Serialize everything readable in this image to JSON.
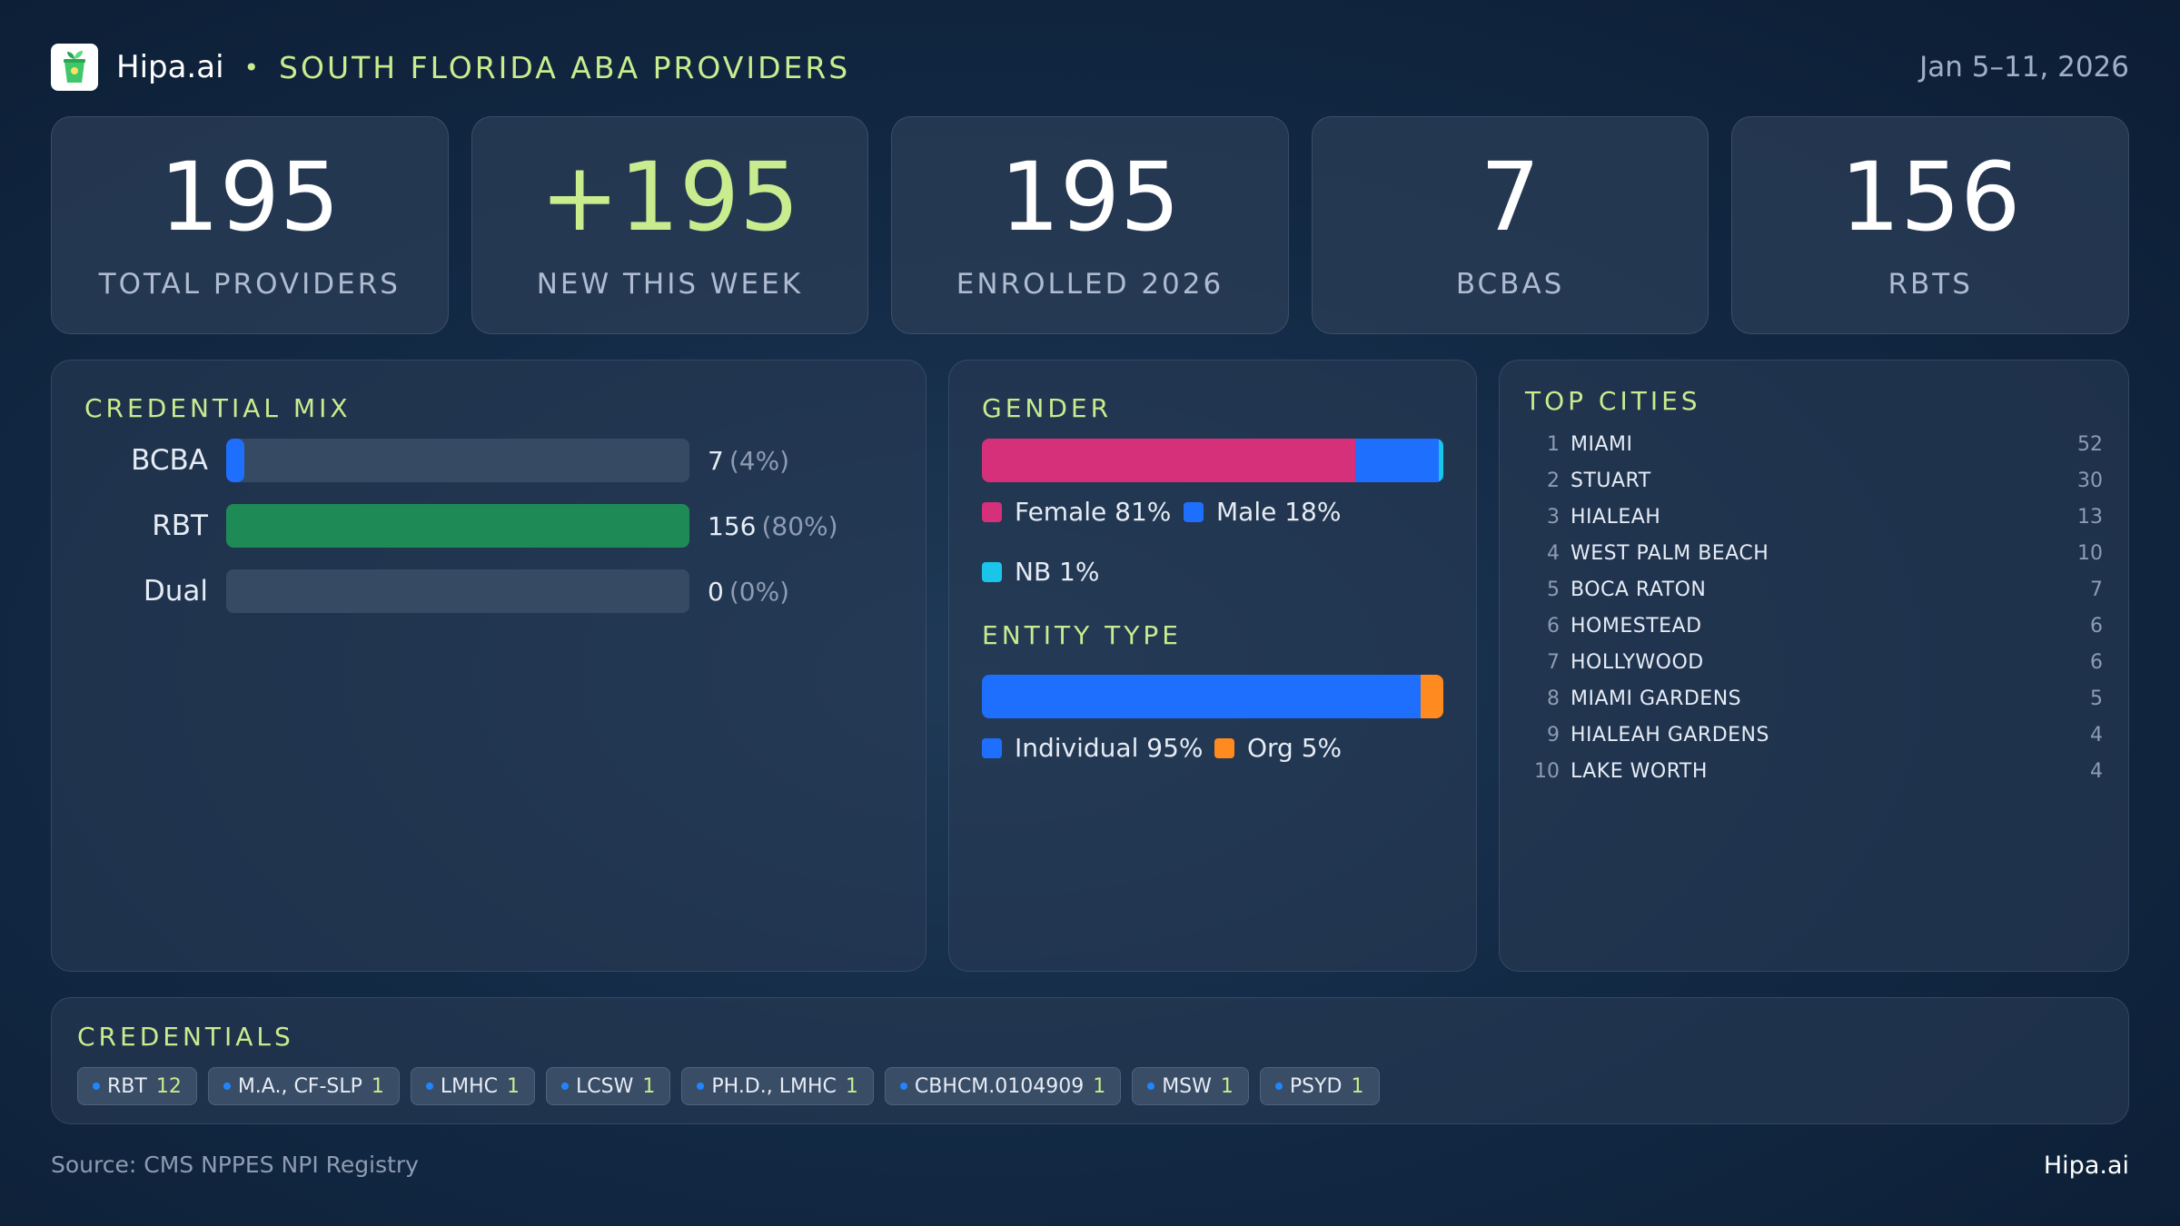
{
  "header": {
    "brand": "Hipa.ai",
    "separator": "•",
    "title": "SOUTH FLORIDA ABA PROVIDERS",
    "date_range": "Jan 5–11, 2026"
  },
  "kpis": [
    {
      "value": "195",
      "label": "TOTAL PROVIDERS"
    },
    {
      "value": "+195",
      "label": "NEW THIS WEEK"
    },
    {
      "value": "195",
      "label": "ENROLLED 2026"
    },
    {
      "value": "7",
      "label": "BCBAS"
    },
    {
      "value": "156",
      "label": "RBTS"
    }
  ],
  "credential_mix": {
    "title": "CREDENTIAL MIX",
    "rows": [
      {
        "label": "BCBA",
        "count": "7",
        "pct": "(4%)",
        "fraction": 0.04,
        "color": "#1f6fff"
      },
      {
        "label": "RBT",
        "count": "156",
        "pct": "(80%)",
        "fraction": 1.0,
        "color": "#1e8b57"
      },
      {
        "label": "Dual",
        "count": "0",
        "pct": "(0%)",
        "fraction": 0,
        "color": "#1f6fff"
      }
    ]
  },
  "gender": {
    "title": "GENDER",
    "segments": [
      {
        "label": "Female 81%",
        "fraction": 0.81,
        "color": "#d6307a"
      },
      {
        "label": "Male 18%",
        "fraction": 0.18,
        "color": "#1f6fff"
      },
      {
        "label": "NB 1%",
        "fraction": 0.01,
        "color": "#19c6ea"
      }
    ]
  },
  "entity_type": {
    "title": "ENTITY TYPE",
    "segments": [
      {
        "label": "Individual 95%",
        "fraction": 0.95,
        "color": "#1f6fff"
      },
      {
        "label": "Org 5%",
        "fraction": 0.05,
        "color": "#ff8a1f"
      }
    ]
  },
  "top_cities": {
    "title": "TOP CITIES",
    "items": [
      {
        "rank": "1",
        "name": "MIAMI",
        "count": "52"
      },
      {
        "rank": "2",
        "name": "STUART",
        "count": "30"
      },
      {
        "rank": "3",
        "name": "HIALEAH",
        "count": "13"
      },
      {
        "rank": "4",
        "name": "WEST PALM BEACH",
        "count": "10"
      },
      {
        "rank": "5",
        "name": "BOCA RATON",
        "count": "7"
      },
      {
        "rank": "6",
        "name": "HOMESTEAD",
        "count": "6"
      },
      {
        "rank": "7",
        "name": "HOLLYWOOD",
        "count": "6"
      },
      {
        "rank": "8",
        "name": "MIAMI GARDENS",
        "count": "5"
      },
      {
        "rank": "9",
        "name": "HIALEAH GARDENS",
        "count": "4"
      },
      {
        "rank": "10",
        "name": "LAKE WORTH",
        "count": "4"
      }
    ]
  },
  "credentials": {
    "title": "CREDENTIALS",
    "chips": [
      {
        "label": "RBT",
        "count": "12"
      },
      {
        "label": "M.A., CF-SLP",
        "count": "1"
      },
      {
        "label": "LMHC",
        "count": "1"
      },
      {
        "label": "LCSW",
        "count": "1"
      },
      {
        "label": "PH.D., LMHC",
        "count": "1"
      },
      {
        "label": "CBHCM.0104909",
        "count": "1"
      },
      {
        "label": "MSW",
        "count": "1"
      },
      {
        "label": "PSYD",
        "count": "1"
      }
    ]
  },
  "footer": {
    "source": "Source: CMS NPPES NPI Registry",
    "brand": "Hipa.ai"
  },
  "icons": {
    "logo": "cup-sprout-icon"
  },
  "colors": {
    "accent": "#c8ec8e",
    "blue": "#1f6fff",
    "green": "#1e8b57",
    "pink": "#d6307a",
    "cyan": "#19c6ea",
    "orange": "#ff8a1f"
  }
}
